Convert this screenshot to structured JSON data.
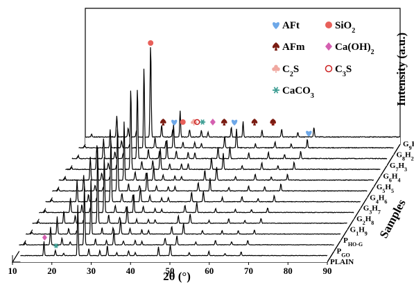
{
  "chart_data": {
    "type": "line",
    "style": "3D waterfall XRD patterns",
    "xlabel": "2θ (°)",
    "zlabel": "Samples",
    "ylabel": "Intensity (a.u.)",
    "xlim": [
      10,
      90
    ],
    "x_ticks": [
      10,
      20,
      30,
      40,
      50,
      60,
      70,
      80,
      90
    ],
    "samples": [
      {
        "name": "PLAIN"
      },
      {
        "name": "P",
        "sub": "GO"
      },
      {
        "name": "P",
        "sub": "HO-G"
      },
      {
        "name": "G",
        "sub": "1",
        "name2": "H",
        "sub2": "9"
      },
      {
        "name": "G",
        "sub": "2",
        "name2": "H",
        "sub2": "8"
      },
      {
        "name": "G",
        "sub": "3",
        "name2": "H",
        "sub2": "7"
      },
      {
        "name": "G",
        "sub": "4",
        "name2": "H",
        "sub2": "6"
      },
      {
        "name": "G",
        "sub": "5",
        "name2": "H",
        "sub2": "5"
      },
      {
        "name": "G",
        "sub": "6",
        "name2": "H",
        "sub2": "4"
      },
      {
        "name": "G",
        "sub": "7",
        "name2": "H",
        "sub2": "3"
      },
      {
        "name": "G",
        "sub": "8",
        "name2": "H",
        "sub2": "2"
      },
      {
        "name": "G",
        "sub": "9",
        "name2": "H"
      }
    ],
    "peaks": [
      {
        "x": 9.0,
        "h": 0.05
      },
      {
        "x": 11.6,
        "h": 0.03
      },
      {
        "x": 18.0,
        "h": 0.26
      },
      {
        "x": 20.9,
        "h": 0.1
      },
      {
        "x": 23.0,
        "h": 0.06
      },
      {
        "x": 26.6,
        "h": 1.0
      },
      {
        "x": 29.4,
        "h": 0.12
      },
      {
        "x": 32.2,
        "h": 0.1
      },
      {
        "x": 34.1,
        "h": 0.24
      },
      {
        "x": 36.5,
        "h": 0.08
      },
      {
        "x": 39.5,
        "h": 0.07
      },
      {
        "x": 41.2,
        "h": 0.06
      },
      {
        "x": 47.1,
        "h": 0.14
      },
      {
        "x": 50.1,
        "h": 0.18
      },
      {
        "x": 54.9,
        "h": 0.06
      },
      {
        "x": 59.9,
        "h": 0.07
      },
      {
        "x": 64.0,
        "h": 0.05
      },
      {
        "x": 68.1,
        "h": 0.09
      }
    ],
    "phases": [
      {
        "name": "AFt",
        "color": "#6ea8e8",
        "marker": "heart"
      },
      {
        "name": "SiO",
        "sub": "2",
        "color": "#e8605a",
        "marker": "circle"
      },
      {
        "name": "AFm",
        "color": "#7a1c12",
        "marker": "spade"
      },
      {
        "name": "Ca(OH)",
        "sub": "2",
        "color": "#d45fb0",
        "marker": "diamond"
      },
      {
        "name": "C",
        "sub": "2",
        "name2": "S",
        "color": "#f0a8a0",
        "marker": "club"
      },
      {
        "name": "C",
        "sub": "3",
        "name2": "S",
        "color": "#cc2222",
        "marker": "ring"
      },
      {
        "name": "CaCO",
        "sub": "3",
        "color": "#3f9e94",
        "marker": "asterisk"
      }
    ],
    "peak_markers": [
      {
        "phase": "SiO2",
        "x": 26.6
      },
      {
        "phase": "AFm",
        "x": 29.8
      },
      {
        "phase": "AFt",
        "x": 32.6
      },
      {
        "phase": "SiO2",
        "x": 34.8
      },
      {
        "phase": "C2S",
        "x": 37.6
      },
      {
        "phase": "C3S",
        "x": 38.4
      },
      {
        "phase": "CaCO3",
        "x": 39.8
      },
      {
        "phase": "Ca(OH)2",
        "x": 42.4
      },
      {
        "phase": "AFm",
        "x": 45.3
      },
      {
        "phase": "AFt",
        "x": 47.9
      },
      {
        "phase": "AFm",
        "x": 53.0
      },
      {
        "phase": "SiO2",
        "x": 57.7
      },
      {
        "phase": "AFm",
        "x": 57.7
      },
      {
        "phase": "AFt",
        "x": 66.8
      },
      {
        "phase": "Ca(OH)2",
        "x": 18.0,
        "front": true
      },
      {
        "phase": "CaCO3",
        "x": 20.9,
        "front": true
      }
    ]
  }
}
